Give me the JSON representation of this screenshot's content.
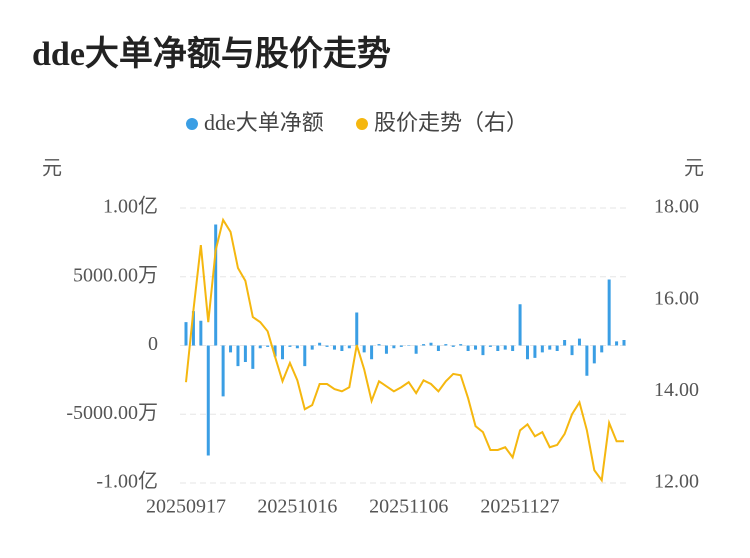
{
  "chart_data": {
    "type": "bar-line",
    "title": "dde大单净额与股价走势",
    "y_unit": "元",
    "y2_unit": "元",
    "categories": [
      "20250917",
      null,
      null,
      null,
      null,
      null,
      null,
      null,
      null,
      null,
      null,
      null,
      null,
      null,
      null,
      "20251016",
      null,
      null,
      null,
      null,
      null,
      null,
      null,
      null,
      null,
      null,
      null,
      null,
      null,
      null,
      "20251106",
      null,
      null,
      null,
      null,
      null,
      null,
      null,
      null,
      null,
      null,
      null,
      null,
      null,
      null,
      "20251127",
      null,
      null,
      null,
      null,
      null,
      null,
      null,
      null,
      null,
      null,
      null,
      null,
      null,
      null
    ],
    "series": [
      {
        "name": "dde大单净额",
        "type": "bar",
        "color": "#3a9ee4",
        "values": [
          1700,
          2500,
          1800,
          -8000,
          8800,
          -3700,
          -500,
          -1500,
          -1200,
          -1700,
          -200,
          -100,
          -800,
          -1000,
          -100,
          -200,
          -1500,
          -300,
          200,
          -100,
          -300,
          -400,
          -200,
          2400,
          -500,
          -1000,
          100,
          -600,
          -200,
          -100,
          0,
          -600,
          100,
          200,
          -400,
          100,
          -100,
          100,
          -400,
          -300,
          -700,
          -100,
          -400,
          -300,
          -400,
          3000,
          -1000,
          -900,
          -500,
          -300,
          -400,
          400,
          -700,
          500,
          -2200,
          -1300,
          -500,
          4800,
          300,
          400
        ]
      },
      {
        "name": "股价走势（右）",
        "type": "line",
        "axis": "y2",
        "color": "#f5b70f",
        "values": [
          14.2,
          15.77,
          17.19,
          15.51,
          17.08,
          17.74,
          17.48,
          16.69,
          16.41,
          15.62,
          15.51,
          15.31,
          14.75,
          14.22,
          14.62,
          14.24,
          13.61,
          13.7,
          14.16,
          14.16,
          14.05,
          14.0,
          14.09,
          15.01,
          14.48,
          13.79,
          14.22,
          14.11,
          14.0,
          14.09,
          14.2,
          13.96,
          14.24,
          14.16,
          14.0,
          14.22,
          14.38,
          14.35,
          13.85,
          13.24,
          13.11,
          12.72,
          12.72,
          12.78,
          12.56,
          13.15,
          13.28,
          13.02,
          13.11,
          12.78,
          12.83,
          13.07,
          13.5,
          13.76,
          13.15,
          12.28,
          12.06,
          13.31,
          12.91,
          12.91
        ]
      }
    ],
    "ylim": [
      -10000,
      10000
    ],
    "yticks": [
      {
        "value": 10000,
        "label": "1.00亿"
      },
      {
        "value": 5000,
        "label": "5000.00万"
      },
      0,
      {
        "value": -5000,
        "label": "-5000.00万"
      },
      {
        "value": -10000,
        "label": "-1.00亿"
      }
    ],
    "y2lim": [
      12,
      18
    ],
    "y2ticks": [
      {
        "value": 18,
        "label": "18.00"
      },
      {
        "value": 16,
        "label": "16.00"
      },
      {
        "value": 14,
        "label": "14.00"
      },
      {
        "value": 12,
        "label": "12.00"
      }
    ],
    "grid": true
  }
}
